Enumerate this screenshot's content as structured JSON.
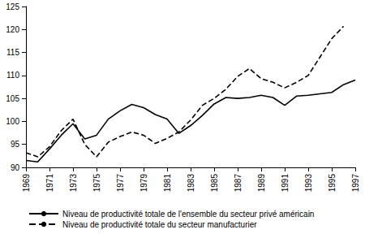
{
  "chart_data": {
    "type": "line",
    "x": [
      1969,
      1970,
      1971,
      1972,
      1973,
      1974,
      1975,
      1976,
      1977,
      1978,
      1979,
      1980,
      1981,
      1982,
      1983,
      1984,
      1985,
      1986,
      1987,
      1988,
      1989,
      1990,
      1991,
      1992,
      1993,
      1994,
      1995,
      1996,
      1997
    ],
    "series": [
      {
        "name": "Niveau de productivité totale de l'ensemble du secteur privé américain",
        "color": "#000000",
        "line_style": "solid",
        "marker": "none",
        "values": [
          91.5,
          91.2,
          94.0,
          97.0,
          99.5,
          96.2,
          97.0,
          100.5,
          102.3,
          103.7,
          103.0,
          101.5,
          100.5,
          97.4,
          99.1,
          101.3,
          103.8,
          105.2,
          105.0,
          105.2,
          105.7,
          105.2,
          103.5,
          105.5,
          105.7,
          106.0,
          106.3,
          108.0,
          109.0
        ]
      },
      {
        "name": "Niveau de productivité totale du secteur manufacturier",
        "color": "#000000",
        "line_style": "dashed",
        "marker": "none",
        "values": [
          93.2,
          92.3,
          94.5,
          98.0,
          100.5,
          95.0,
          92.3,
          95.5,
          96.7,
          97.7,
          97.0,
          95.2,
          96.3,
          97.7,
          100.3,
          103.5,
          105.0,
          107.0,
          109.8,
          111.5,
          109.3,
          108.5,
          107.3,
          108.5,
          110.0,
          114.0,
          118.0,
          120.7,
          null
        ]
      }
    ],
    "xlim": [
      1969,
      1997
    ],
    "xticks": [
      1969,
      1971,
      1973,
      1975,
      1977,
      1979,
      1981,
      1983,
      1985,
      1987,
      1989,
      1991,
      1993,
      1995,
      1997
    ],
    "ylim": [
      90,
      125
    ],
    "yticks": [
      90,
      95,
      100,
      105,
      110,
      115,
      120,
      125
    ],
    "grid": false,
    "legend": "bottom"
  }
}
